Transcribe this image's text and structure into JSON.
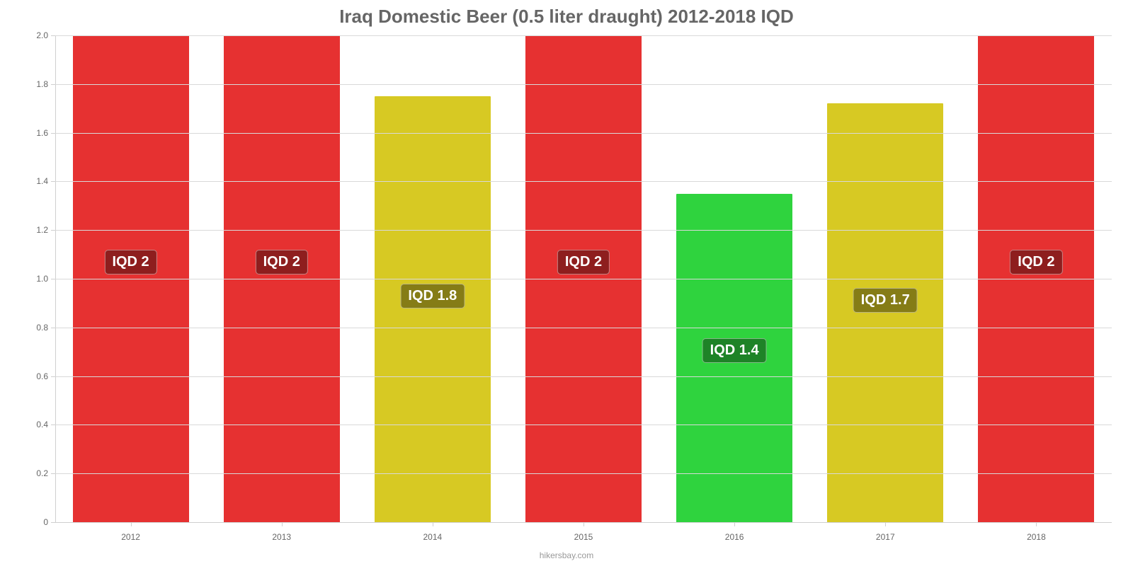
{
  "chart": {
    "type": "bar",
    "title": "Iraq Domestic Beer (0.5 liter draught) 2012-2018 IQD",
    "title_color": "#666666",
    "title_fontsize": 26,
    "background_color": "#ffffff",
    "grid_color": "#d9d9d9",
    "tick_color": "#cfcfcf",
    "tick_label_color": "#666666",
    "tick_label_fontsize": 12,
    "ylim": [
      0,
      2.0
    ],
    "y_ticks": [
      {
        "v": 0.0,
        "label": "0"
      },
      {
        "v": 0.2,
        "label": "0.2"
      },
      {
        "v": 0.4,
        "label": "0.4"
      },
      {
        "v": 0.6,
        "label": "0.6"
      },
      {
        "v": 0.8,
        "label": "0.8"
      },
      {
        "v": 1.0,
        "label": "1.0"
      },
      {
        "v": 1.2,
        "label": "1.2"
      },
      {
        "v": 1.4,
        "label": "1.4"
      },
      {
        "v": 1.6,
        "label": "1.6"
      },
      {
        "v": 1.8,
        "label": "1.8"
      },
      {
        "v": 2.0,
        "label": "2.0"
      }
    ],
    "bar_width_pct": 77,
    "bar_label_fontsize": 20,
    "bar_label_text_color": "#ffffff",
    "categories": [
      "2012",
      "2013",
      "2014",
      "2015",
      "2016",
      "2017",
      "2018"
    ],
    "bars": [
      {
        "value": 2.0,
        "bar_height": 2.0,
        "label": "IQD 2",
        "color": "#e63131",
        "label_bg": "#8e1e1e"
      },
      {
        "value": 2.0,
        "bar_height": 2.0,
        "label": "IQD 2",
        "color": "#e63131",
        "label_bg": "#8e1e1e"
      },
      {
        "value": 1.8,
        "bar_height": 1.75,
        "label": "IQD 1.8",
        "color": "#d7c923",
        "label_bg": "#857c16"
      },
      {
        "value": 2.0,
        "bar_height": 2.0,
        "label": "IQD 2",
        "color": "#e63131",
        "label_bg": "#8e1e1e"
      },
      {
        "value": 1.4,
        "bar_height": 1.35,
        "label": "IQD 1.4",
        "color": "#2fd33e",
        "label_bg": "#1e8327"
      },
      {
        "value": 1.7,
        "bar_height": 1.72,
        "label": "IQD 1.7",
        "color": "#d7c923",
        "label_bg": "#857c16"
      },
      {
        "value": 2.0,
        "bar_height": 2.0,
        "label": "IQD 2",
        "color": "#e63131",
        "label_bg": "#8e1e1e"
      }
    ],
    "source": "hikersbay.com",
    "source_color": "#999999",
    "source_fontsize": 12
  }
}
